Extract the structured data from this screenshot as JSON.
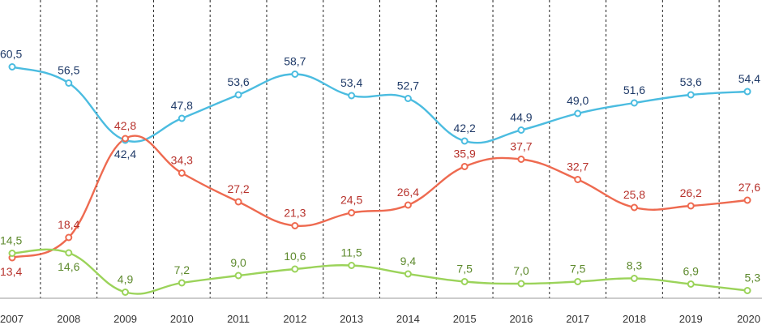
{
  "chart_data": {
    "type": "line",
    "x": [
      "2007",
      "2008",
      "2009",
      "2010",
      "2011",
      "2012",
      "2013",
      "2014",
      "2015",
      "2016",
      "2017",
      "2018",
      "2019",
      "2020"
    ],
    "series": [
      {
        "values": [
          60.5,
          56.5,
          42.4,
          47.8,
          53.6,
          58.7,
          53.4,
          52.7,
          42.2,
          44.9,
          49.0,
          51.6,
          53.6,
          54.4
        ],
        "labels": [
          "60,5",
          "56,5",
          "42,4",
          "47,8",
          "53,6",
          "58,7",
          "53,4",
          "52,7",
          "42,2",
          "44,9",
          "49,0",
          "51,6",
          "53,6",
          "54,4"
        ],
        "color": "#4BBCE0",
        "label_color": "#1F3A68"
      },
      {
        "values": [
          13.4,
          18.4,
          42.8,
          34.3,
          27.2,
          21.3,
          24.5,
          26.4,
          35.9,
          37.7,
          32.7,
          25.8,
          26.2,
          27.6
        ],
        "labels": [
          "13,4",
          "18,4",
          "42,8",
          "34,3",
          "27,2",
          "21,3",
          "24,5",
          "26,4",
          "35,9",
          "37,7",
          "32,7",
          "25,8",
          "26,2",
          "27,6"
        ],
        "color": "#EE6A50",
        "label_color": "#B7322C"
      },
      {
        "values": [
          14.5,
          14.6,
          4.9,
          7.2,
          9.0,
          10.6,
          11.5,
          9.4,
          7.5,
          7.0,
          7.5,
          8.3,
          6.9,
          5.3
        ],
        "labels": [
          "14,5",
          "14,6",
          "4,9",
          "7,2",
          "9,0",
          "10,6",
          "11,5",
          "9,4",
          "7,5",
          "7,0",
          "7,5",
          "8,3",
          "6,9",
          "5,3"
        ],
        "color": "#9BD35A",
        "label_color": "#5E8A2E"
      }
    ],
    "ylim": [
      0,
      70
    ],
    "grid": "vertical-dashed",
    "legend": "none"
  }
}
